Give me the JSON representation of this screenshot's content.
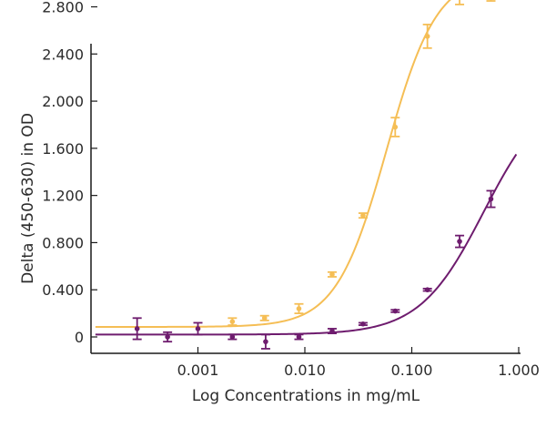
{
  "chart_data": {
    "type": "scatter",
    "title": "",
    "xlabel": "Log Concentrations in mg/mL",
    "ylabel": "Delta (450-630) in OD",
    "x_scale": "log",
    "xlim": [
      0.0001,
      1.0
    ],
    "ylim": [
      0,
      3.0
    ],
    "x_ticks": [
      {
        "value": 0.001,
        "label": "0.001"
      },
      {
        "value": 0.01,
        "label": "0.010"
      },
      {
        "value": 0.1,
        "label": "0.100"
      },
      {
        "value": 1.0,
        "label": "1.000"
      }
    ],
    "y_ticks": [
      {
        "value": 0.0,
        "label": "0"
      },
      {
        "value": 0.4,
        "label": "0.400"
      },
      {
        "value": 0.8,
        "label": "0.800"
      },
      {
        "value": 1.2,
        "label": "1.200"
      },
      {
        "value": 1.6,
        "label": "1.600"
      },
      {
        "value": 2.0,
        "label": "2.000"
      },
      {
        "value": 2.4,
        "label": "2.400"
      },
      {
        "value": 2.8,
        "label": "2.800"
      }
    ],
    "grid": false,
    "legend": "none",
    "series": [
      {
        "color": "#F5BE55",
        "points": [
          {
            "x": 0.0021,
            "y": 0.13,
            "err": 0.03
          },
          {
            "x": 0.0042,
            "y": 0.16,
            "err": 0.02
          },
          {
            "x": 0.0088,
            "y": 0.24,
            "err": 0.04
          },
          {
            "x": 0.018,
            "y": 0.53,
            "err": 0.02
          },
          {
            "x": 0.035,
            "y": 1.03,
            "err": 0.02
          },
          {
            "x": 0.07,
            "y": 1.78,
            "err": 0.08
          },
          {
            "x": 0.14,
            "y": 2.55,
            "err": 0.1
          },
          {
            "x": 0.28,
            "y": 2.88,
            "err": 0.06
          },
          {
            "x": 0.55,
            "y": 2.95,
            "err": 0.1
          }
        ],
        "curve": {
          "bottom": 0.085,
          "top": 3.08,
          "ec50": 0.058,
          "hill": 1.85
        }
      },
      {
        "color": "#6E1C6E",
        "points": [
          {
            "x": 0.00027,
            "y": 0.07,
            "err": 0.09
          },
          {
            "x": 0.00052,
            "y": 0.0,
            "err": 0.04
          },
          {
            "x": 0.001,
            "y": 0.07,
            "err": 0.05
          },
          {
            "x": 0.0021,
            "y": 0.0,
            "err": 0.02
          },
          {
            "x": 0.0043,
            "y": -0.04,
            "err": 0.06
          },
          {
            "x": 0.0088,
            "y": 0.0,
            "err": 0.02
          },
          {
            "x": 0.018,
            "y": 0.05,
            "err": 0.02
          },
          {
            "x": 0.035,
            "y": 0.11,
            "err": 0.01
          },
          {
            "x": 0.07,
            "y": 0.22,
            "err": 0.01
          },
          {
            "x": 0.14,
            "y": 0.4,
            "err": 0.01
          },
          {
            "x": 0.28,
            "y": 0.81,
            "err": 0.05
          },
          {
            "x": 0.55,
            "y": 1.17,
            "err": 0.07
          }
        ],
        "curve": {
          "bottom": 0.02,
          "top": 2.1,
          "ec50": 0.47,
          "hill": 1.45
        }
      }
    ]
  }
}
